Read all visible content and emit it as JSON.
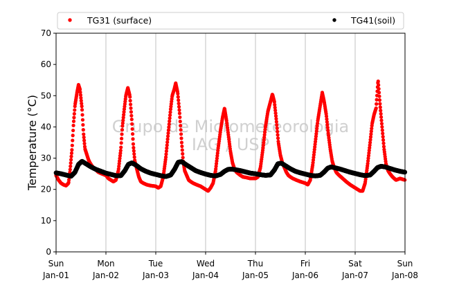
{
  "chart_data": {
    "type": "scatter",
    "ylabel": "Temperature (°C)",
    "xlabel": "",
    "ylim": [
      0,
      70
    ],
    "xlim": [
      0,
      7
    ],
    "yticks": [
      0,
      10,
      20,
      30,
      40,
      50,
      60,
      70
    ],
    "xticks": [
      {
        "x": 0,
        "day": "Sun",
        "date": "Jan-01"
      },
      {
        "x": 1,
        "day": "Mon",
        "date": "Jan-02"
      },
      {
        "x": 2,
        "day": "Tue",
        "date": "Jan-03"
      },
      {
        "x": 3,
        "day": "Wed",
        "date": "Jan-04"
      },
      {
        "x": 4,
        "day": "Thu",
        "date": "Jan-05"
      },
      {
        "x": 5,
        "day": "Fri",
        "date": "Jan-06"
      },
      {
        "x": 6,
        "day": "Sat",
        "date": "Jan-07"
      },
      {
        "x": 7,
        "day": "Sun",
        "date": "Jan-08"
      }
    ],
    "grid": "vertical",
    "legend_placement": "top",
    "watermark": [
      "Grupo de Micrometeorologia",
      "IAG / USP"
    ],
    "series": [
      {
        "name": "TG31 (surface)",
        "color": "#ff0000",
        "marker": "point",
        "x": [
          0.0,
          0.05,
          0.1,
          0.15,
          0.2,
          0.25,
          0.28,
          0.32,
          0.35,
          0.38,
          0.42,
          0.45,
          0.48,
          0.52,
          0.55,
          0.58,
          0.62,
          0.65,
          0.68,
          0.72,
          0.78,
          0.85,
          0.92,
          1.0,
          1.05,
          1.1,
          1.15,
          1.2,
          1.25,
          1.3,
          1.33,
          1.37,
          1.4,
          1.44,
          1.48,
          1.52,
          1.55,
          1.58,
          1.62,
          1.66,
          1.7,
          1.75,
          1.82,
          1.9,
          2.0,
          2.05,
          2.1,
          2.15,
          2.2,
          2.25,
          2.3,
          2.33,
          2.37,
          2.4,
          2.44,
          2.48,
          2.52,
          2.55,
          2.58,
          2.62,
          2.66,
          2.7,
          2.75,
          2.82,
          2.9,
          3.0,
          3.05,
          3.1,
          3.15,
          3.2,
          3.25,
          3.3,
          3.34,
          3.38,
          3.42,
          3.46,
          3.5,
          3.54,
          3.58,
          3.62,
          3.66,
          3.7,
          3.75,
          3.82,
          3.9,
          4.0,
          4.05,
          4.1,
          4.15,
          4.2,
          4.25,
          4.3,
          4.34,
          4.38,
          4.42,
          4.46,
          4.5,
          4.54,
          4.58,
          4.62,
          4.66,
          4.7,
          4.75,
          4.82,
          4.9,
          5.0,
          5.05,
          5.1,
          5.15,
          5.2,
          5.25,
          5.3,
          5.34,
          5.38,
          5.42,
          5.46,
          5.5,
          5.54,
          5.58,
          5.62,
          5.66,
          5.7,
          5.75,
          5.82,
          5.9,
          6.0,
          6.05,
          6.1,
          6.15,
          6.2,
          6.25,
          6.3,
          6.34,
          6.38,
          6.42,
          6.46,
          6.5,
          6.54,
          6.58,
          6.62,
          6.66,
          6.7,
          6.75,
          6.82,
          6.9,
          7.0
        ],
        "y": [
          24.5,
          23.0,
          22.0,
          21.5,
          21.2,
          22.0,
          26.0,
          33.0,
          41.0,
          47.0,
          51.0,
          53.5,
          52.0,
          46.0,
          38.0,
          33.0,
          31.0,
          29.5,
          28.5,
          27.5,
          26.5,
          25.5,
          25.0,
          24.5,
          23.5,
          23.0,
          22.5,
          23.0,
          26.0,
          33.0,
          40.0,
          46.0,
          50.0,
          52.5,
          50.0,
          42.0,
          34.0,
          29.0,
          26.5,
          24.0,
          22.5,
          22.0,
          21.5,
          21.2,
          21.0,
          20.5,
          21.0,
          24.0,
          30.0,
          38.0,
          46.0,
          50.0,
          52.0,
          54.0,
          51.0,
          44.0,
          35.0,
          29.0,
          26.0,
          24.5,
          23.0,
          22.5,
          22.0,
          21.5,
          21.0,
          20.0,
          19.5,
          20.5,
          22.0,
          26.0,
          33.0,
          39.0,
          43.0,
          46.0,
          42.0,
          37.0,
          32.0,
          28.5,
          26.5,
          25.5,
          25.0,
          24.5,
          24.0,
          23.8,
          23.5,
          23.5,
          24.0,
          27.0,
          33.0,
          40.0,
          45.0,
          48.0,
          50.5,
          48.0,
          42.0,
          35.0,
          31.0,
          28.5,
          27.0,
          25.5,
          24.5,
          24.0,
          23.5,
          23.0,
          22.5,
          22.0,
          21.5,
          23.0,
          28.0,
          35.0,
          42.0,
          47.0,
          51.0,
          48.0,
          44.0,
          38.0,
          33.0,
          29.0,
          27.0,
          25.5,
          24.8,
          24.2,
          23.5,
          22.5,
          21.5,
          20.5,
          20.0,
          19.5,
          19.5,
          22.0,
          28.0,
          35.0,
          41.0,
          44.0,
          46.0,
          55.0,
          47.0,
          40.0,
          33.0,
          28.0,
          26.0,
          25.0,
          24.0,
          23.0,
          23.5,
          23.0
        ]
      },
      {
        "name": "TG41(soil)",
        "color": "#000000",
        "marker": "point",
        "x": [
          0.0,
          0.1,
          0.2,
          0.3,
          0.38,
          0.45,
          0.52,
          0.6,
          0.7,
          0.8,
          0.9,
          1.0,
          1.1,
          1.2,
          1.3,
          1.38,
          1.45,
          1.52,
          1.6,
          1.7,
          1.8,
          1.9,
          2.0,
          2.1,
          2.2,
          2.3,
          2.38,
          2.45,
          2.52,
          2.6,
          2.7,
          2.8,
          2.9,
          3.0,
          3.1,
          3.2,
          3.3,
          3.38,
          3.45,
          3.52,
          3.6,
          3.7,
          3.8,
          3.9,
          4.0,
          4.1,
          4.2,
          4.3,
          4.38,
          4.45,
          4.52,
          4.6,
          4.7,
          4.8,
          4.9,
          5.0,
          5.1,
          5.2,
          5.3,
          5.38,
          5.45,
          5.52,
          5.6,
          5.7,
          5.8,
          5.9,
          6.0,
          6.1,
          6.2,
          6.3,
          6.38,
          6.45,
          6.52,
          6.6,
          6.7,
          6.8,
          6.9,
          7.0
        ],
        "y": [
          25.3,
          25.0,
          24.6,
          24.2,
          25.5,
          28.0,
          29.0,
          28.2,
          27.2,
          26.4,
          25.8,
          25.2,
          24.8,
          24.4,
          24.4,
          26.0,
          28.0,
          28.5,
          27.8,
          26.6,
          25.8,
          25.2,
          24.8,
          24.4,
          24.1,
          24.6,
          26.5,
          28.7,
          28.9,
          28.0,
          27.0,
          26.0,
          25.4,
          24.9,
          24.5,
          24.3,
          24.8,
          25.8,
          26.4,
          26.5,
          26.3,
          26.0,
          25.6,
          25.2,
          25.0,
          24.7,
          24.5,
          24.6,
          26.2,
          28.2,
          28.4,
          27.6,
          26.6,
          25.8,
          25.3,
          24.9,
          24.5,
          24.3,
          24.5,
          25.6,
          26.8,
          27.2,
          26.9,
          26.5,
          26.0,
          25.5,
          25.1,
          24.7,
          24.4,
          24.6,
          25.8,
          27.0,
          27.4,
          27.2,
          26.7,
          26.2,
          25.8,
          25.5
        ]
      }
    ]
  }
}
